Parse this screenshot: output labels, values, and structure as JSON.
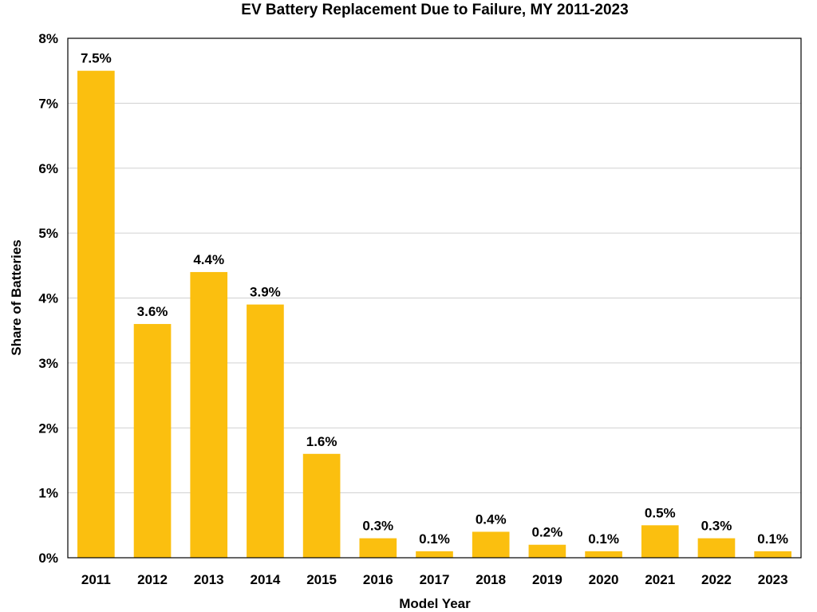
{
  "chart_data": {
    "type": "bar",
    "title": "EV Battery Replacement Due to Failure, MY 2011-2023",
    "xlabel": "Model Year",
    "ylabel": "Share of Batteries",
    "categories": [
      "2011",
      "2012",
      "2013",
      "2014",
      "2015",
      "2016",
      "2017",
      "2018",
      "2019",
      "2020",
      "2021",
      "2022",
      "2023"
    ],
    "values": [
      7.5,
      3.6,
      4.4,
      3.9,
      1.6,
      0.3,
      0.1,
      0.4,
      0.2,
      0.1,
      0.5,
      0.3,
      0.1
    ],
    "data_labels": [
      "7.5%",
      "3.6%",
      "4.4%",
      "3.9%",
      "1.6%",
      "0.3%",
      "0.1%",
      "0.4%",
      "0.2%",
      "0.1%",
      "0.5%",
      "0.3%",
      "0.1%"
    ],
    "ylim": [
      0,
      8
    ],
    "yticks": [
      0,
      1,
      2,
      3,
      4,
      5,
      6,
      7,
      8
    ],
    "ytick_labels": [
      "0%",
      "1%",
      "2%",
      "3%",
      "4%",
      "5%",
      "6%",
      "7%",
      "8%"
    ],
    "bar_color": "#FBBF0F",
    "grid": true,
    "legend": "none"
  }
}
